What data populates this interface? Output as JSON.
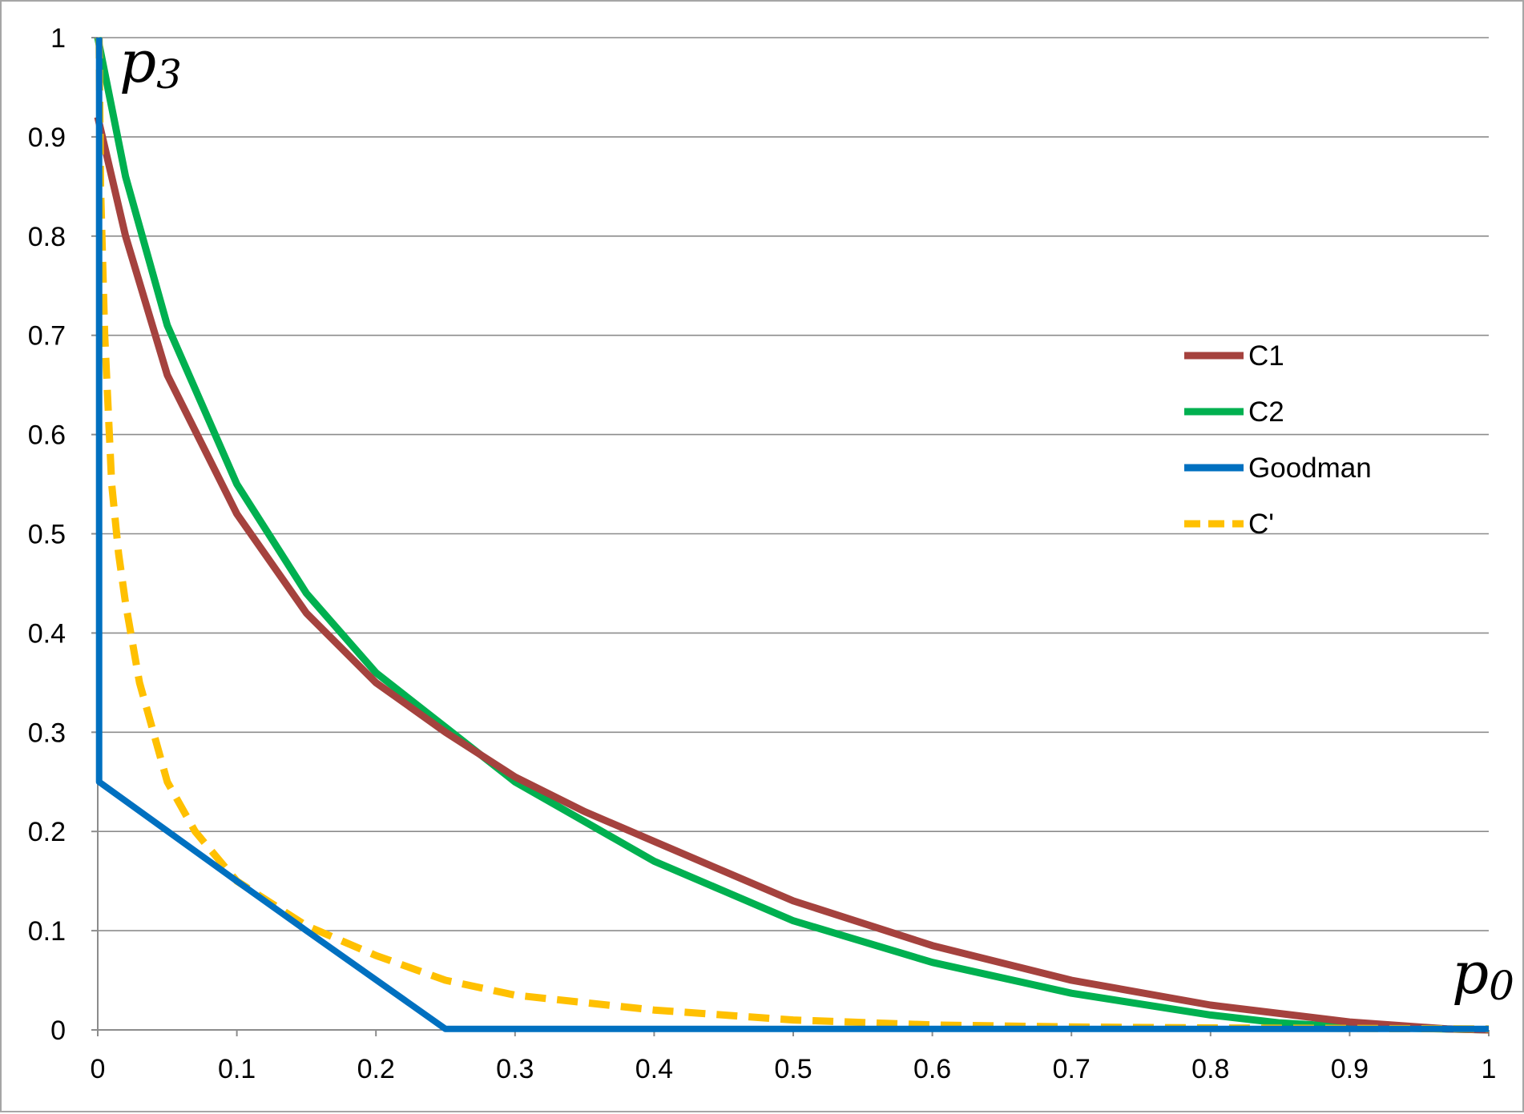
{
  "chart_data": {
    "type": "line",
    "title": "",
    "xlabel_base": "p",
    "xlabel_sub": "0",
    "ylabel_base": "p",
    "ylabel_sub": "3",
    "xlim": [
      0,
      1
    ],
    "ylim": [
      0,
      1
    ],
    "x_ticks": [
      "0",
      "0.1",
      "0.2",
      "0.3",
      "0.4",
      "0.5",
      "0.6",
      "0.7",
      "0.8",
      "0.9",
      "1"
    ],
    "y_ticks": [
      "0",
      "0.1",
      "0.2",
      "0.3",
      "0.4",
      "0.5",
      "0.6",
      "0.7",
      "0.8",
      "0.9",
      "1"
    ],
    "grid": "horizontal",
    "legend_position": "right",
    "series": [
      {
        "name": "C1",
        "color": "#a5423e",
        "dash": "solid",
        "points": [
          [
            0,
            0.92
          ],
          [
            0.02,
            0.8
          ],
          [
            0.05,
            0.66
          ],
          [
            0.1,
            0.52
          ],
          [
            0.15,
            0.42
          ],
          [
            0.2,
            0.35
          ],
          [
            0.25,
            0.3
          ],
          [
            0.3,
            0.255
          ],
          [
            0.35,
            0.22
          ],
          [
            0.4,
            0.19
          ],
          [
            0.45,
            0.16
          ],
          [
            0.5,
            0.13
          ],
          [
            0.6,
            0.085
          ],
          [
            0.7,
            0.05
          ],
          [
            0.8,
            0.025
          ],
          [
            0.9,
            0.008
          ],
          [
            0.97,
            0.001
          ],
          [
            1,
            0
          ]
        ]
      },
      {
        "name": "C2",
        "color": "#00b050",
        "dash": "solid",
        "points": [
          [
            0,
            1
          ],
          [
            0.02,
            0.86
          ],
          [
            0.05,
            0.71
          ],
          [
            0.1,
            0.55
          ],
          [
            0.15,
            0.44
          ],
          [
            0.2,
            0.36
          ],
          [
            0.25,
            0.305
          ],
          [
            0.3,
            0.25
          ],
          [
            0.35,
            0.21
          ],
          [
            0.4,
            0.17
          ],
          [
            0.45,
            0.14
          ],
          [
            0.5,
            0.11
          ],
          [
            0.6,
            0.068
          ],
          [
            0.7,
            0.037
          ],
          [
            0.8,
            0.015
          ],
          [
            0.85,
            0.007
          ],
          [
            0.9,
            0.003
          ],
          [
            1,
            0
          ]
        ]
      },
      {
        "name": "Goodman",
        "color": "#0070c0",
        "dash": "solid",
        "points": [
          [
            0.001,
            1
          ],
          [
            0.001,
            0.25
          ],
          [
            0.1,
            0.15
          ],
          [
            0.15,
            0.1
          ],
          [
            0.25,
            0.001
          ],
          [
            1,
            0.001
          ]
        ]
      },
      {
        "name": "C'",
        "color": "#ffc000",
        "dash": "dashed",
        "points": [
          [
            0.001,
            1
          ],
          [
            0.002,
            0.85
          ],
          [
            0.005,
            0.7
          ],
          [
            0.01,
            0.55
          ],
          [
            0.015,
            0.48
          ],
          [
            0.02,
            0.43
          ],
          [
            0.03,
            0.35
          ],
          [
            0.05,
            0.25
          ],
          [
            0.07,
            0.2
          ],
          [
            0.1,
            0.15
          ],
          [
            0.15,
            0.105
          ],
          [
            0.2,
            0.075
          ],
          [
            0.25,
            0.05
          ],
          [
            0.3,
            0.035
          ],
          [
            0.4,
            0.02
          ],
          [
            0.5,
            0.01
          ],
          [
            0.6,
            0.005
          ],
          [
            0.7,
            0.003
          ],
          [
            0.8,
            0.002
          ],
          [
            1,
            0.001
          ]
        ]
      }
    ]
  }
}
